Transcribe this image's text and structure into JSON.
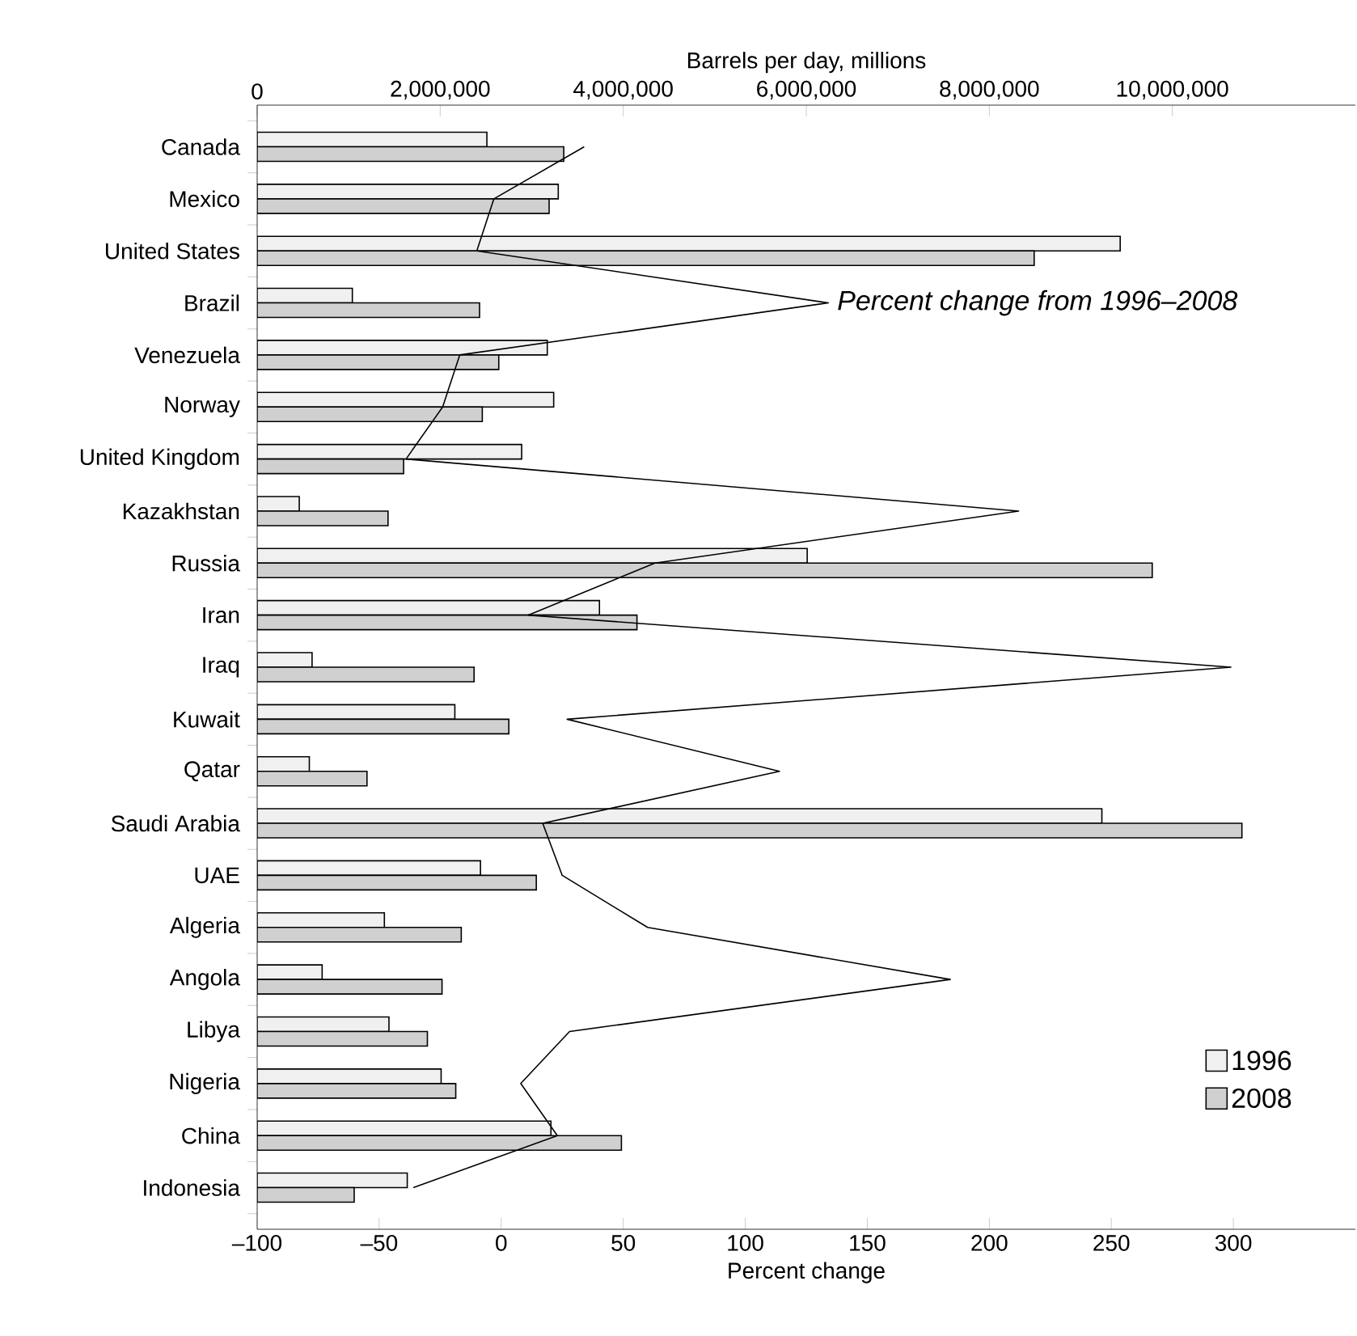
{
  "chart_data": {
    "type": "bar",
    "orientation": "horizontal",
    "categories": [
      "Canada",
      "Mexico",
      "United States",
      "Brazil",
      "Venezuela",
      "Norway",
      "United Kingdom",
      "Kazakhstan",
      "Russia",
      "Iran",
      "Iraq",
      "Kuwait",
      "Qatar",
      "Saudi Arabia",
      "UAE",
      "Algeria",
      "Angola",
      "Libya",
      "Nigeria",
      "China",
      "Indonesia"
    ],
    "series": [
      {
        "name": "1996",
        "color": "#f0f0f0",
        "axis": "x2",
        "values": [
          2510000,
          3290000,
          9430000,
          1040000,
          3170000,
          3240000,
          2890000,
          460000,
          6010000,
          3740000,
          600000,
          2160000,
          570000,
          9230000,
          2440000,
          1390000,
          710000,
          1440000,
          2010000,
          3210000,
          1640000
        ]
      },
      {
        "name": "2008",
        "color": "#d0d0d0",
        "axis": "x2",
        "values": [
          3350000,
          3190000,
          8490000,
          2430000,
          2640000,
          2460000,
          1600000,
          1430000,
          9780000,
          4150000,
          2370000,
          2750000,
          1200000,
          10760000,
          3050000,
          2230000,
          2020000,
          1860000,
          2170000,
          3980000,
          1060000
        ]
      },
      {
        "type": "line",
        "color": "#000000",
        "values": [
          34,
          -3,
          -10,
          134,
          -17,
          -24,
          -39,
          212,
          63,
          11,
          299,
          27,
          114,
          17,
          25,
          60,
          184,
          28,
          8,
          23,
          -36
        ]
      }
    ],
    "xlabel": "Percent change",
    "x2label": "Barrels per day, millions",
    "xlim": [
      -100,
      350
    ],
    "xticks": [
      {
        "value": -100,
        "label": "–100"
      },
      {
        "value": -50,
        "label": "–50"
      },
      0,
      50,
      100,
      150,
      200,
      250,
      300
    ],
    "x2lim": [
      0,
      12000000
    ],
    "x2ticks": [
      0,
      {
        "value": 2000000,
        "label": "2,000,000"
      },
      {
        "value": 4000000,
        "label": "4,000,000"
      },
      {
        "value": 6000000,
        "label": "6,000,000"
      },
      {
        "value": 8000000,
        "label": "8,000,000"
      },
      {
        "value": 10000000,
        "label": "10,000,000"
      }
    ],
    "annotations": [
      {
        "text": "*Percent change from 1996–2008*",
        "x": 134,
        "y": "Brazil"
      }
    ],
    "legend": "bottom right",
    "marker": "none",
    "line_style": "solid"
  }
}
